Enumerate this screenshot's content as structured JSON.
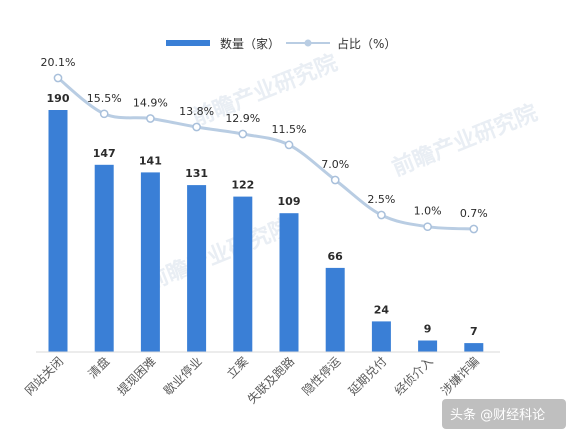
{
  "chart_data": {
    "type": "bar",
    "categories": [
      "网站关闭",
      "清盘",
      "提现困难",
      "歇业停业",
      "立案",
      "失联及跑路",
      "隐性停运",
      "延期兑付",
      "经侦介入",
      "涉嫌诈骗"
    ],
    "series": [
      {
        "name": "数量（家）",
        "type": "bar",
        "values": [
          190,
          147,
          141,
          131,
          122,
          109,
          66,
          24,
          9,
          7
        ],
        "color": "#3a7fd6"
      },
      {
        "name": "占比（%）",
        "type": "line",
        "values": [
          20.1,
          15.5,
          14.9,
          13.8,
          12.9,
          11.5,
          7.0,
          2.5,
          1.0,
          0.7
        ],
        "color": "#b9cde3"
      }
    ],
    "value_labels": [
      "190",
      "147",
      "141",
      "131",
      "122",
      "109",
      "66",
      "24",
      "9",
      "7"
    ],
    "percent_labels": [
      "20.1%",
      "15.5%",
      "14.9%",
      "13.8%",
      "12.9%",
      "11.5%",
      "7.0%",
      "2.5%",
      "1.0%",
      "0.7%"
    ],
    "legend": {
      "bar_label": "数量（家）",
      "line_label": "占比（%）",
      "placement": "top-center"
    },
    "grid": false
  },
  "watermark": {
    "text": "前瞻产业研究院"
  },
  "footer": {
    "text": "头条 @财经科论"
  }
}
